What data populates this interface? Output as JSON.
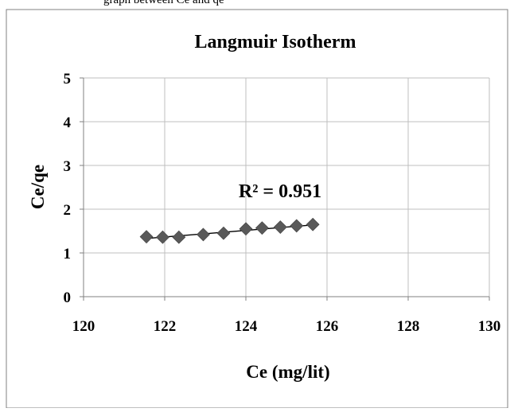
{
  "top_caption": "graph between Ce and qe",
  "chart_data": {
    "type": "scatter",
    "title": "Langmuir Isotherm",
    "xlabel": "Ce (mg/lit)",
    "ylabel": "Ce/qe",
    "xlim": [
      120,
      130
    ],
    "ylim": [
      0,
      5
    ],
    "x_ticks": [
      "120",
      "122",
      "124",
      "126",
      "128",
      "130"
    ],
    "y_ticks": [
      "0",
      "1",
      "2",
      "3",
      "4",
      "5"
    ],
    "grid": true,
    "legend": "none",
    "marker": "diamond",
    "colors": {
      "marker": "#595959",
      "trendline": "#000000",
      "grid": "#bfbfbf",
      "axis": "#808080"
    },
    "series": [
      {
        "x": [
          121.55,
          121.95,
          122.35,
          122.95,
          123.45,
          124.0,
          124.4,
          124.85,
          125.25,
          125.65
        ],
        "y": [
          1.37,
          1.36,
          1.36,
          1.42,
          1.45,
          1.55,
          1.57,
          1.59,
          1.62,
          1.65
        ]
      }
    ],
    "trendline": {
      "type": "linear",
      "x_range": [
        121.55,
        125.65
      ],
      "y_range": [
        1.33,
        1.64
      ]
    },
    "annotation": "R² = 0.951"
  }
}
